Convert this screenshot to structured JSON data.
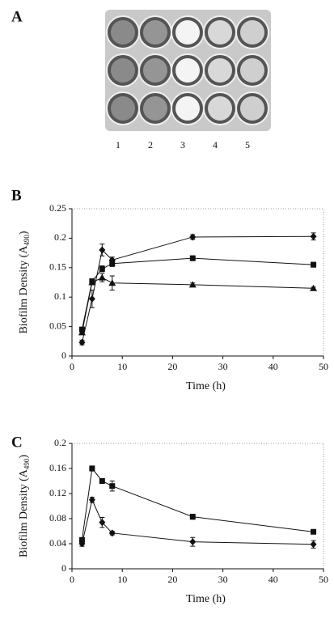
{
  "panel_a": {
    "label": "A",
    "well_labels": [
      "1",
      "2",
      "3",
      "4",
      "5"
    ]
  },
  "chart_data": [
    {
      "type": "line",
      "panel_label": "B",
      "xlabel": "Time (h)",
      "ylabel": {
        "main": "Biofilm Density (A",
        "sub": "490",
        "end": ")"
      },
      "x": [
        2,
        4,
        6,
        8,
        24,
        48
      ],
      "xlim": [
        0,
        50
      ],
      "xticks": [
        0,
        10,
        20,
        30,
        40,
        50
      ],
      "ylim": [
        0,
        0.25
      ],
      "yticks": [
        0,
        0.05,
        0.1,
        0.15,
        0.2,
        0.25
      ],
      "series": [
        {
          "marker": "diamond",
          "color": "#111111",
          "values": [
            0.023,
            0.097,
            0.18,
            0.163,
            0.202,
            0.203
          ],
          "errors": [
            0.004,
            0.015,
            0.01,
            0.005,
            0.004,
            0.006
          ]
        },
        {
          "marker": "square",
          "color": "#111111",
          "values": [
            0.045,
            0.127,
            0.148,
            0.157,
            0.166,
            0.155
          ],
          "errors": [
            0.004,
            0.004,
            0.005,
            0.005,
            0.004,
            0.004
          ]
        },
        {
          "marker": "triangle",
          "color": "#111111",
          "values": [
            0.04,
            0.125,
            0.133,
            0.124,
            0.121,
            0.115
          ],
          "errors": [
            0.003,
            0.004,
            0.007,
            0.012,
            0.003,
            0.002
          ]
        }
      ]
    },
    {
      "type": "line",
      "panel_label": "C",
      "xlabel": "Time (h)",
      "ylabel": {
        "main": "Biofilm Density (A",
        "sub": "490",
        "end": ")"
      },
      "x": [
        2,
        4,
        6,
        8,
        24,
        48
      ],
      "xlim": [
        0,
        50
      ],
      "xticks": [
        0,
        10,
        20,
        30,
        40,
        50
      ],
      "ylim": [
        0,
        0.2
      ],
      "yticks": [
        0,
        0.04,
        0.08,
        0.12,
        0.16,
        0.2
      ],
      "series": [
        {
          "marker": "square",
          "color": "#111111",
          "values": [
            0.046,
            0.16,
            0.14,
            0.132,
            0.083,
            0.059
          ],
          "errors": [
            0.003,
            0.004,
            0.002,
            0.008,
            0.004,
            0.002
          ]
        },
        {
          "marker": "diamond",
          "color": "#111111",
          "values": [
            0.04,
            0.11,
            0.074,
            0.057,
            0.043,
            0.039
          ],
          "errors": [
            0.004,
            0.004,
            0.008,
            0.003,
            0.007,
            0.006
          ]
        }
      ]
    }
  ]
}
